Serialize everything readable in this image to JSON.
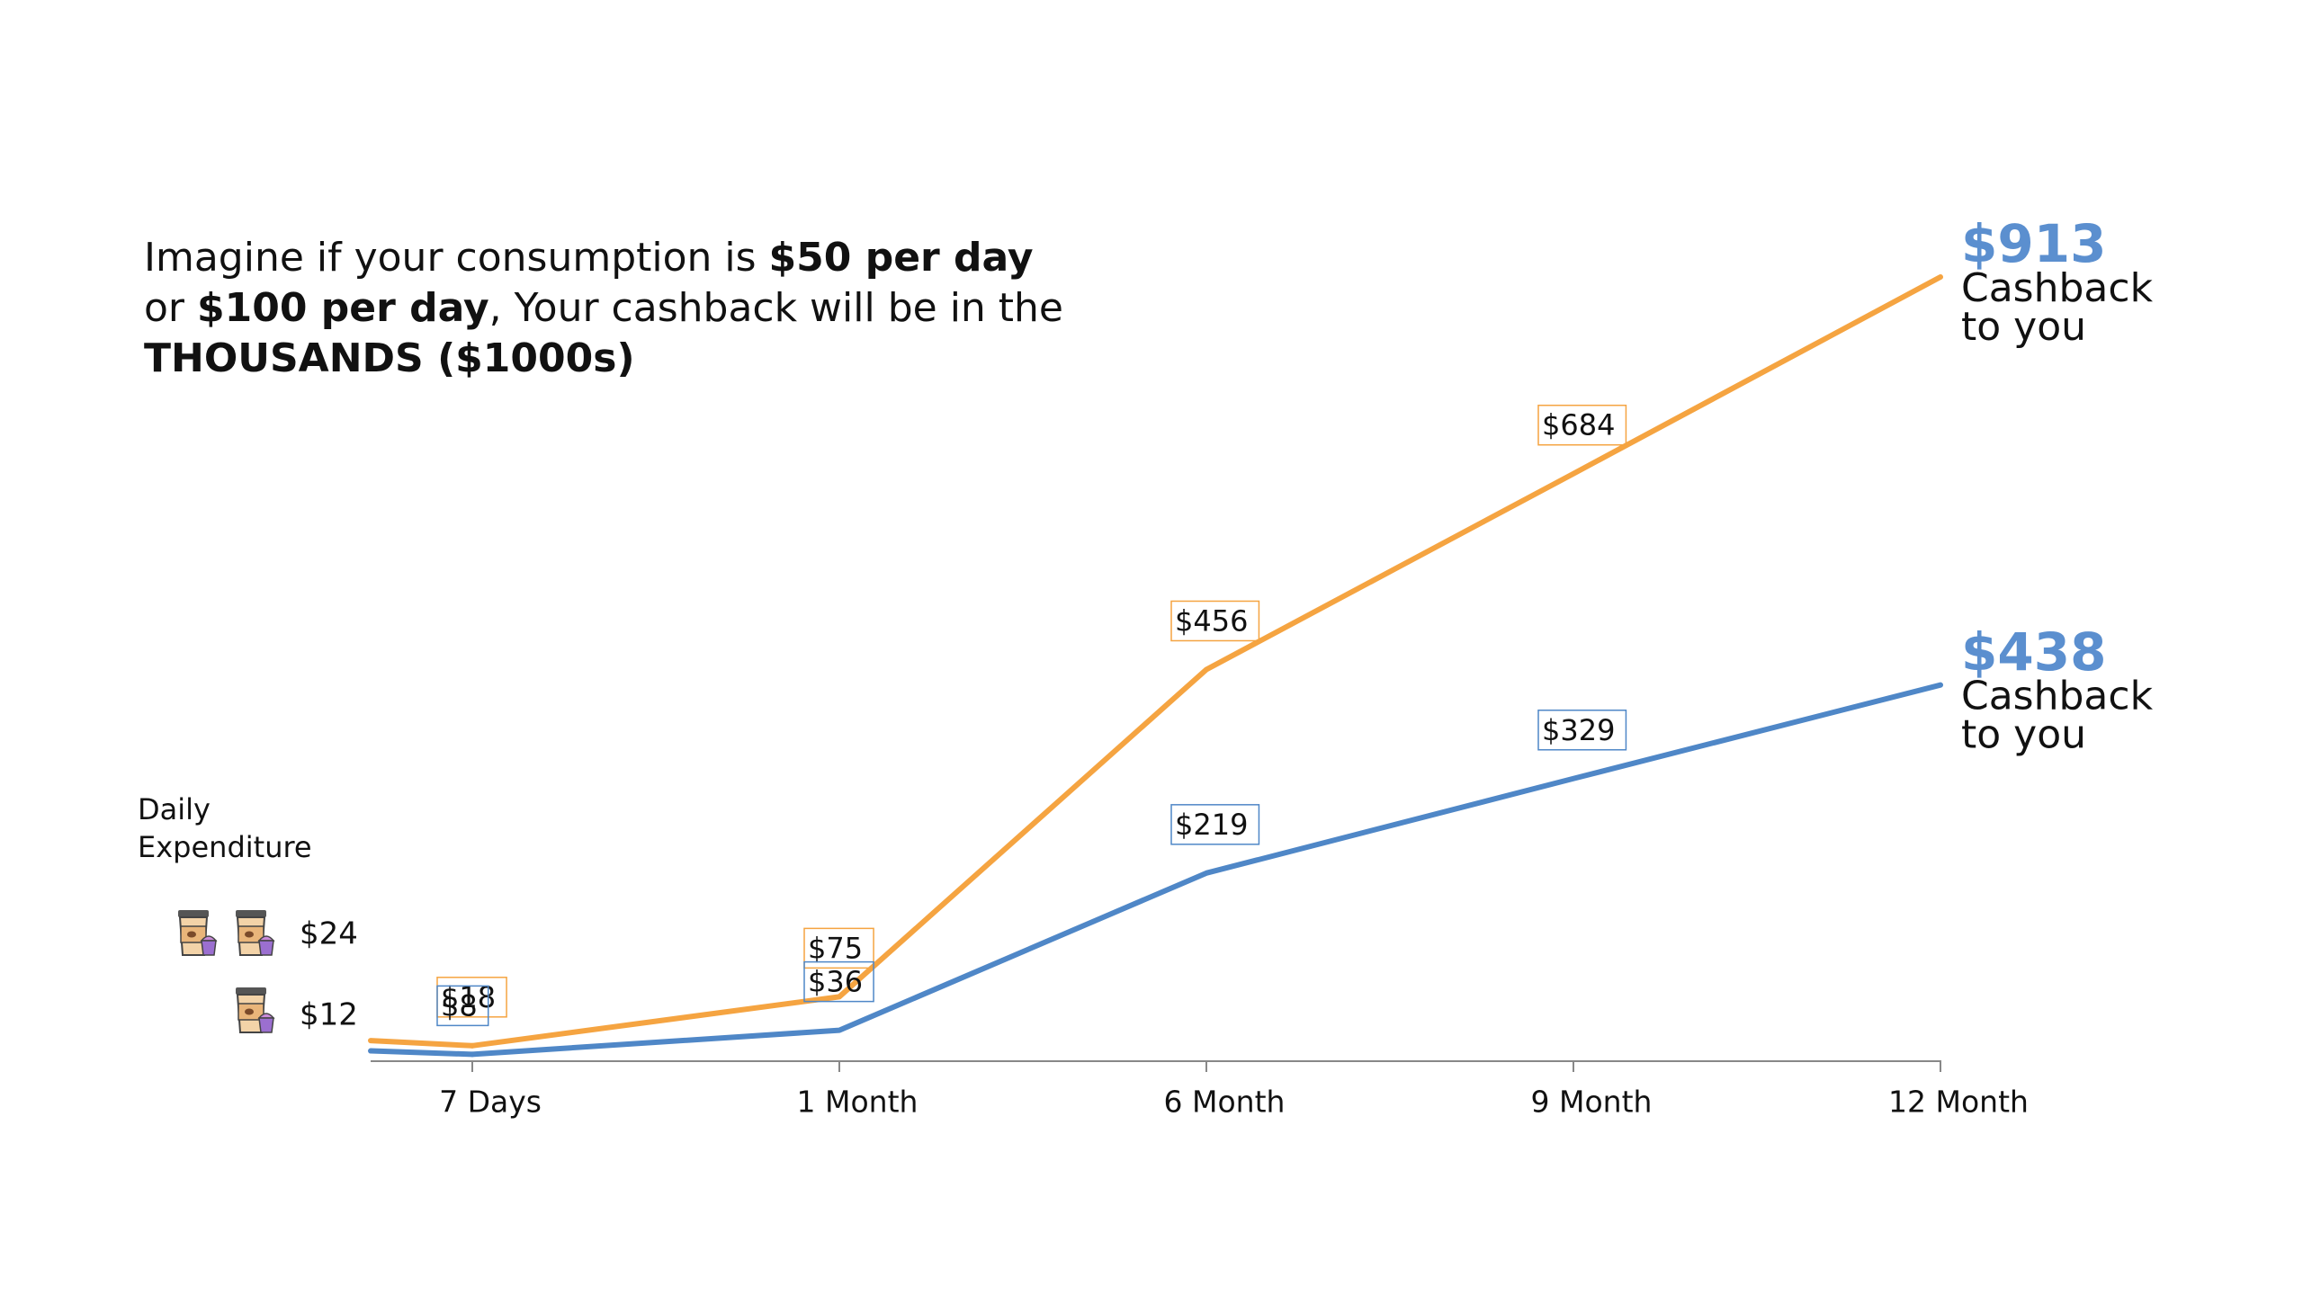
{
  "chart_data": {
    "type": "line",
    "title_lines": [
      [
        {
          "text": "Imagine if your consumption is "
        },
        {
          "text": "$50 per day",
          "bold": true
        }
      ],
      [
        {
          "text": "or "
        },
        {
          "text": "$100 per day",
          "bold": true
        },
        {
          "text": ", Your cashback will be in the"
        }
      ],
      [
        {
          "text": "THOUSANDS ($1000s)",
          "bold": true
        }
      ]
    ],
    "categories": [
      "7 Days",
      "1 Month",
      "6 Month",
      "9 Month",
      "12 Month"
    ],
    "daily_expenditure": {
      "label_lines": [
        "Daily",
        "Expenditure"
      ],
      "values": [
        24,
        12
      ],
      "value_labels": [
        "$24",
        "$12"
      ]
    },
    "series": [
      {
        "color": "#f5a441",
        "values": [
          18,
          75,
          456,
          684,
          913
        ],
        "value_labels": [
          "$18",
          "$75",
          "$456",
          "$684",
          "$913"
        ]
      },
      {
        "color": "#4f87c7",
        "values": [
          8,
          36,
          219,
          329,
          438
        ],
        "value_labels": [
          "$8",
          "$36",
          "$219",
          "$329",
          "$438"
        ]
      }
    ],
    "end_note_lines": [
      "Cashback",
      "to you"
    ],
    "end_value_color": "#5b8fcf"
  }
}
